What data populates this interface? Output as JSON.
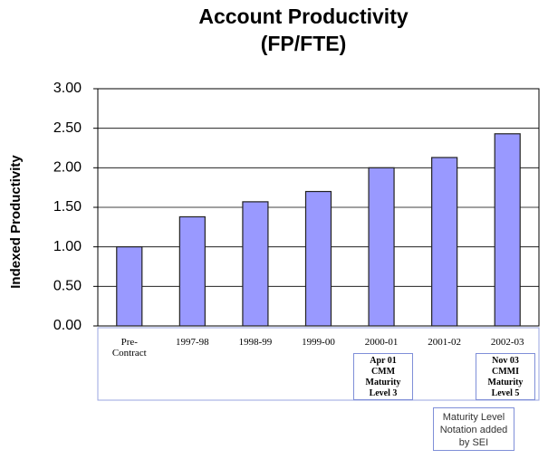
{
  "chart_data": {
    "type": "bar",
    "title": [
      "Account Productivity",
      "(FP/FTE)"
    ],
    "y_label": "Indexed Productivity",
    "categories": [
      "Pre-Contract",
      "1997-98",
      "1998-99",
      "1999-00",
      "2000-01",
      "2001-02",
      "2002-03"
    ],
    "values": [
      1.0,
      1.38,
      1.57,
      1.7,
      2.0,
      2.13,
      2.43
    ],
    "color": "#9999ff",
    "ylim": [
      0,
      3
    ],
    "yticks": [
      {
        "value": 0,
        "label": "0.00"
      },
      {
        "value": 0.5,
        "label": "0.50"
      },
      {
        "value": 1,
        "label": "1.00"
      },
      {
        "value": 1.5,
        "label": "1.50"
      },
      {
        "value": 2,
        "label": "2.00"
      },
      {
        "value": 2.5,
        "label": "2.50"
      },
      {
        "value": 3,
        "label": "3.00"
      }
    ],
    "grid": true,
    "annotations": [
      "Apr 01 CMM Maturity Level 3",
      "Nov 03 CMMI Maturity Level 5",
      "Maturity Level Notation added by SEI"
    ]
  }
}
